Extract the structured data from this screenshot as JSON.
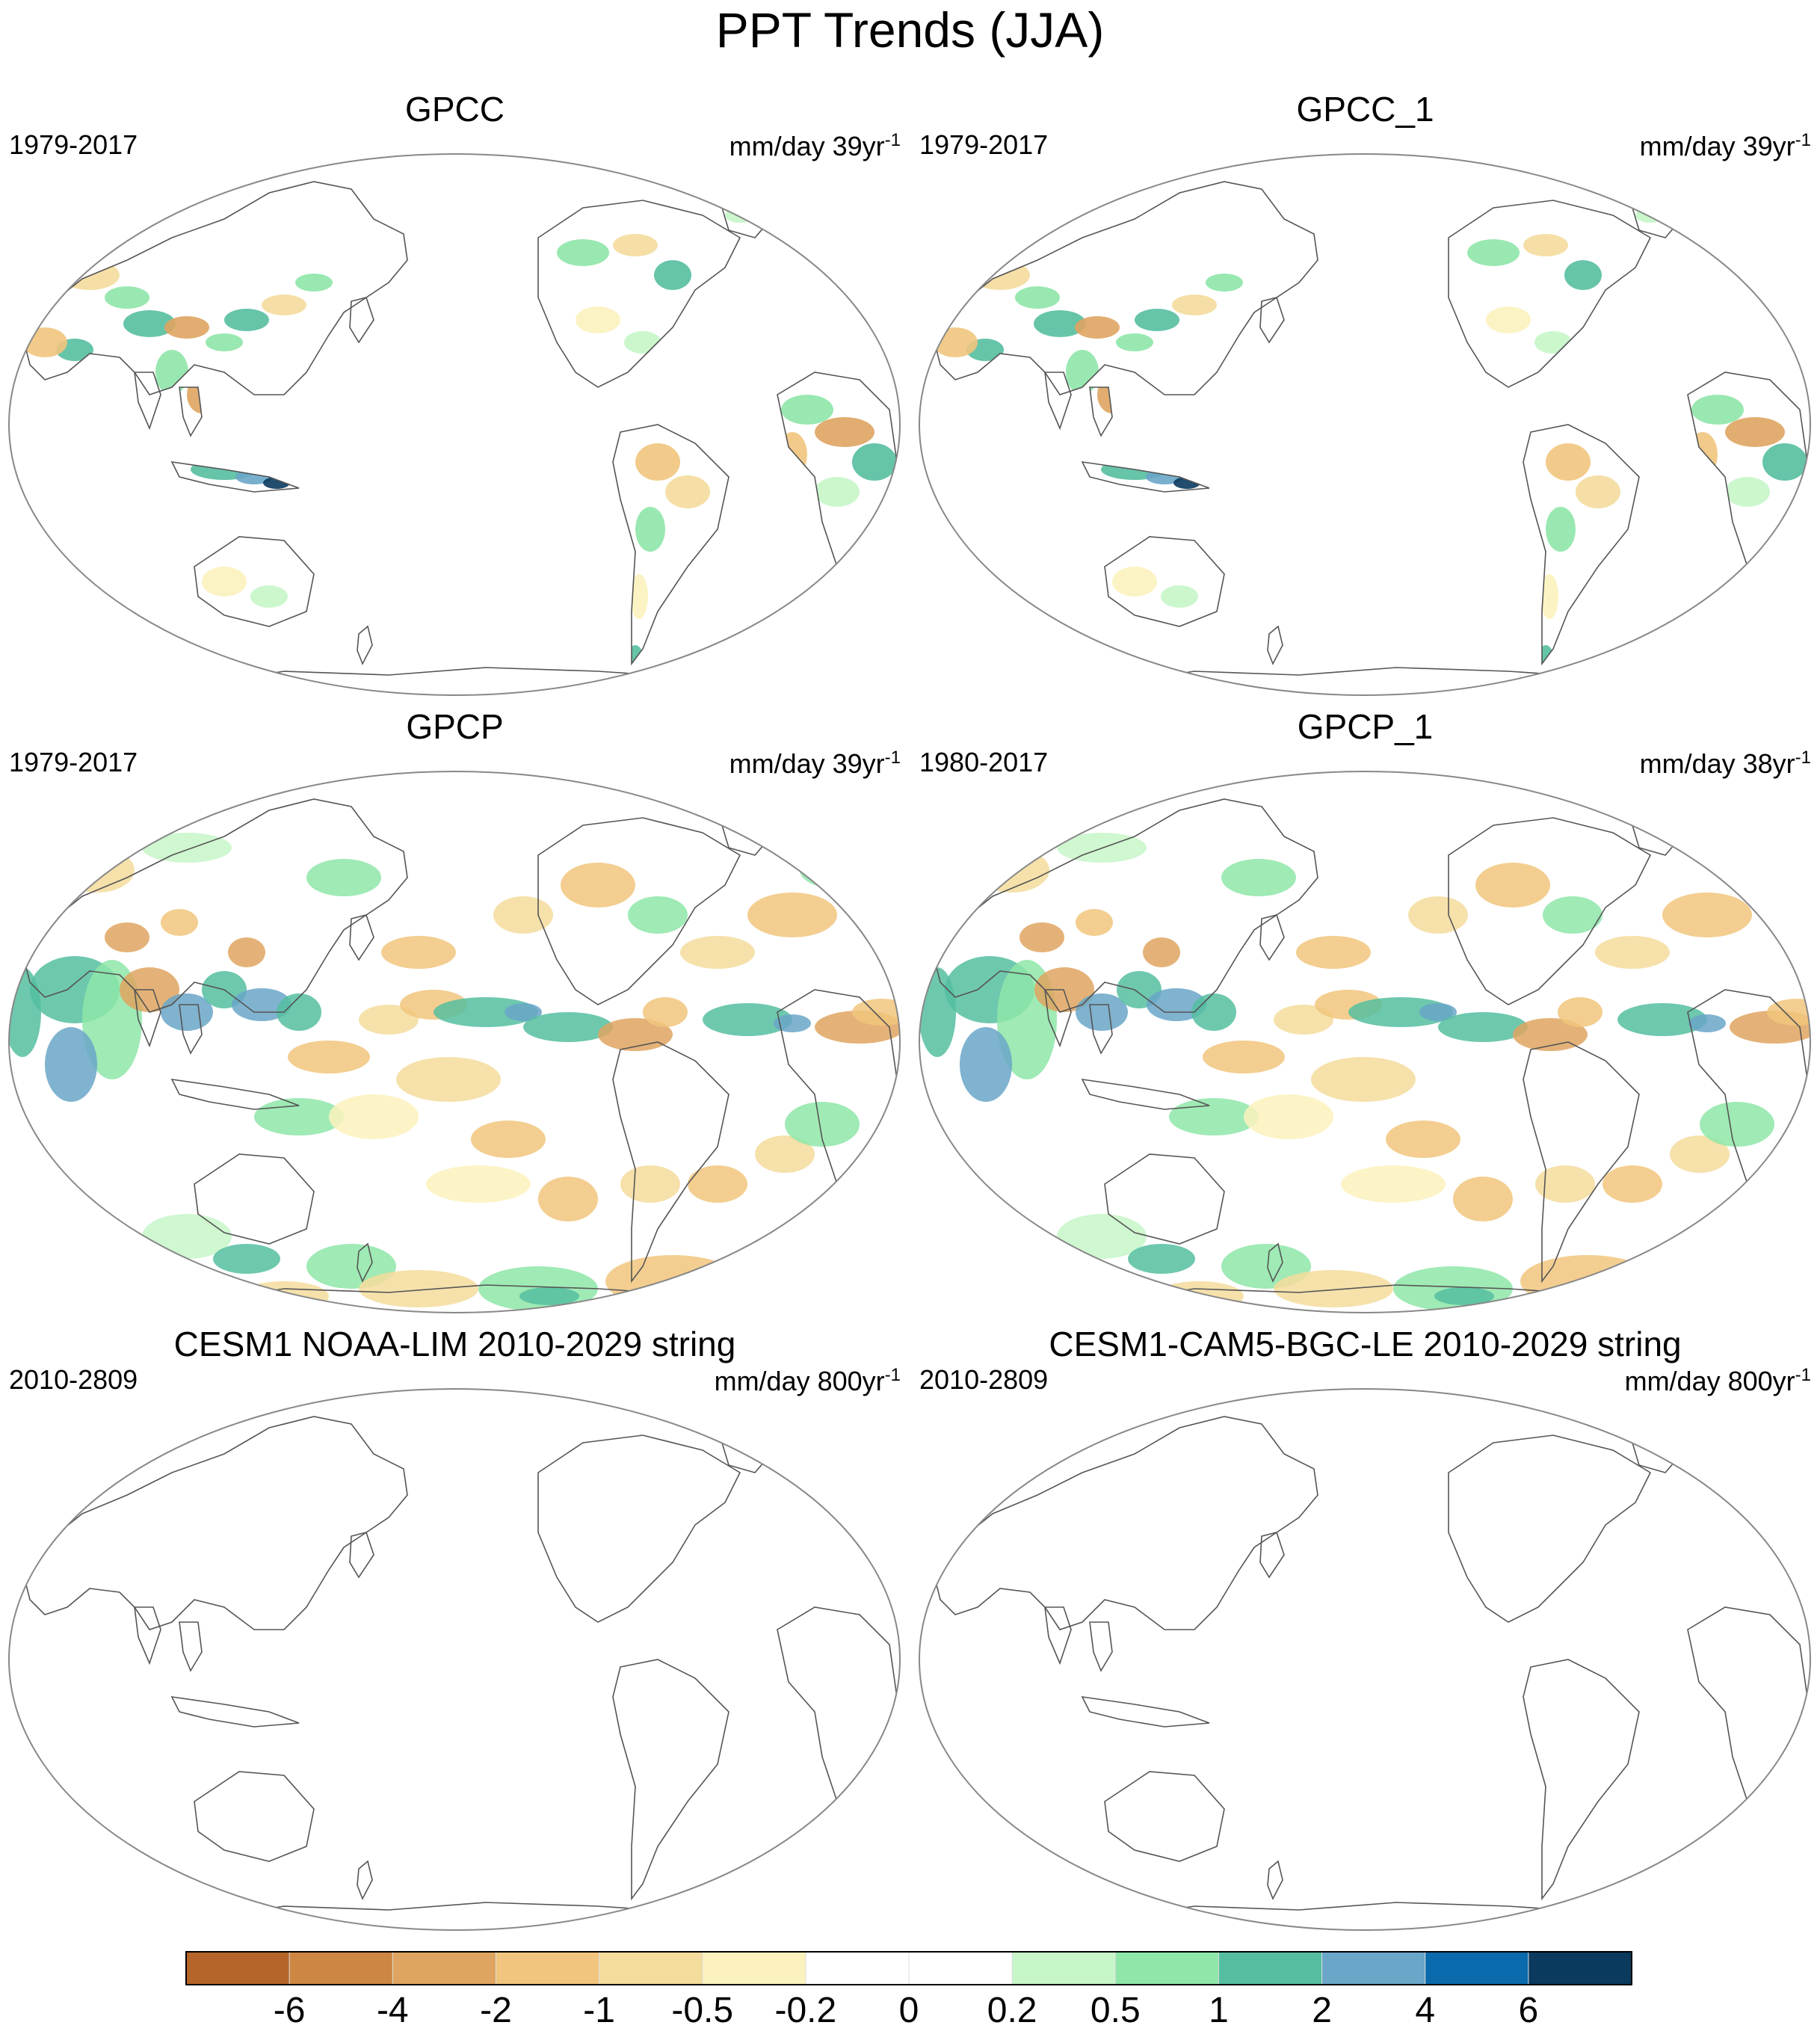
{
  "title": "PPT Trends (JJA)",
  "panels": [
    {
      "name": "GPCC",
      "period": "1979-2017",
      "units_text": "mm/day 39yr",
      "units_sup": "-1",
      "shaded": "land"
    },
    {
      "name": "GPCC_1",
      "period": "1979-2017",
      "units_text": "mm/day 39yr",
      "units_sup": "-1",
      "shaded": "land"
    },
    {
      "name": "GPCP",
      "period": "1979-2017",
      "units_text": "mm/day 39yr",
      "units_sup": "-1",
      "shaded": "global"
    },
    {
      "name": "GPCP_1",
      "period": "1980-2017",
      "units_text": "mm/day 38yr",
      "units_sup": "-1",
      "shaded": "global"
    },
    {
      "name": "CESM1 NOAA-LIM 2010-2029 string",
      "period": "2010-2809",
      "units_text": "mm/day 800yr",
      "units_sup": "-1",
      "shaded": "none"
    },
    {
      "name": "CESM1-CAM5-BGC-LE 2010-2029 string",
      "period": "2010-2809",
      "units_text": "mm/day 800yr",
      "units_sup": "-1",
      "shaded": "none"
    }
  ],
  "colorbar": {
    "labels": [
      "-6",
      "-4",
      "-2",
      "-1",
      "-0.5",
      "-0.2",
      "0",
      "0.2",
      "0.5",
      "1",
      "2",
      "4",
      "6"
    ],
    "colors": [
      "#b5652a",
      "#cd8742",
      "#dfa460",
      "#f1c57d",
      "#f4dc9c",
      "#fbf2bd",
      "#ffffff",
      "#ffffff",
      "#c7f6c8",
      "#8ee6a8",
      "#55bea0",
      "#6aa6c8",
      "#0a6aac",
      "#0a3a5e"
    ]
  },
  "colors": {
    "coastline": "#555555",
    "map_border": "#888888"
  }
}
